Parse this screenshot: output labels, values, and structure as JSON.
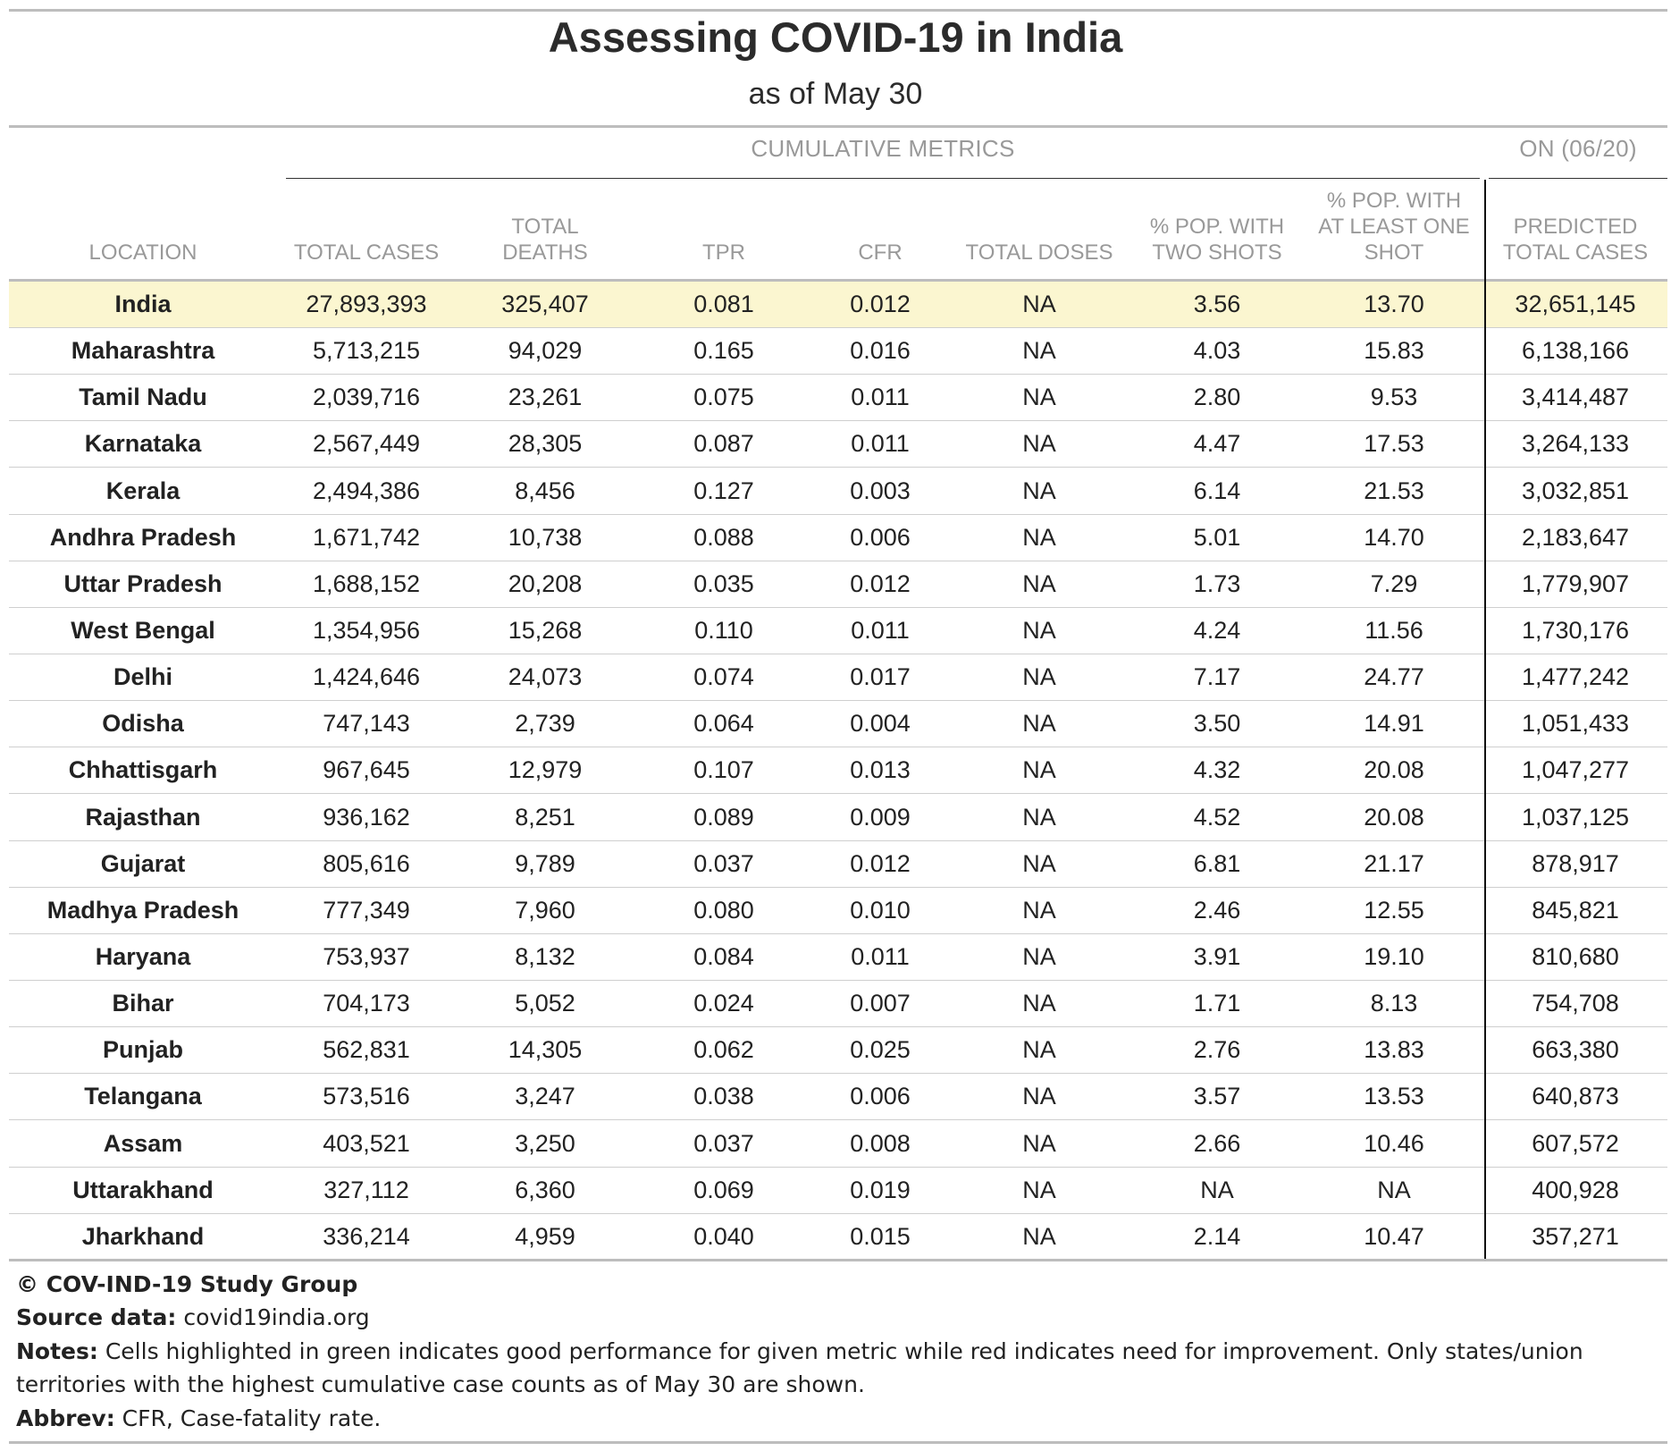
{
  "title": "Assessing COVID-19 in India",
  "subtitle": "as of May 30",
  "group_headers": {
    "cumulative": "CUMULATIVE METRICS",
    "on": "ON (06/20)"
  },
  "columns": [
    "LOCATION",
    "TOTAL CASES",
    "TOTAL DEATHS",
    "TPR",
    "CFR",
    "TOTAL DOSES",
    "% POP. WITH TWO SHOTS",
    "% POP. WITH AT LEAST ONE SHOT",
    "PREDICTED TOTAL CASES"
  ],
  "highlight_color": "#fbf6d0",
  "chart_data": {
    "type": "table",
    "title": "Assessing COVID-19 in India",
    "subtitle": "as of May 30",
    "columns": [
      "LOCATION",
      "TOTAL CASES",
      "TOTAL DEATHS",
      "TPR",
      "CFR",
      "TOTAL DOSES",
      "% POP. WITH TWO SHOTS",
      "% POP. WITH AT LEAST ONE SHOT",
      "PREDICTED TOTAL CASES"
    ],
    "rows": [
      [
        "India",
        "27,893,393",
        "325,407",
        "0.081",
        "0.012",
        "NA",
        "3.56",
        "13.70",
        "32,651,145"
      ],
      [
        "Maharashtra",
        "5,713,215",
        "94,029",
        "0.165",
        "0.016",
        "NA",
        "4.03",
        "15.83",
        "6,138,166"
      ],
      [
        "Tamil Nadu",
        "2,039,716",
        "23,261",
        "0.075",
        "0.011",
        "NA",
        "2.80",
        "9.53",
        "3,414,487"
      ],
      [
        "Karnataka",
        "2,567,449",
        "28,305",
        "0.087",
        "0.011",
        "NA",
        "4.47",
        "17.53",
        "3,264,133"
      ],
      [
        "Kerala",
        "2,494,386",
        "8,456",
        "0.127",
        "0.003",
        "NA",
        "6.14",
        "21.53",
        "3,032,851"
      ],
      [
        "Andhra Pradesh",
        "1,671,742",
        "10,738",
        "0.088",
        "0.006",
        "NA",
        "5.01",
        "14.70",
        "2,183,647"
      ],
      [
        "Uttar Pradesh",
        "1,688,152",
        "20,208",
        "0.035",
        "0.012",
        "NA",
        "1.73",
        "7.29",
        "1,779,907"
      ],
      [
        "West Bengal",
        "1,354,956",
        "15,268",
        "0.110",
        "0.011",
        "NA",
        "4.24",
        "11.56",
        "1,730,176"
      ],
      [
        "Delhi",
        "1,424,646",
        "24,073",
        "0.074",
        "0.017",
        "NA",
        "7.17",
        "24.77",
        "1,477,242"
      ],
      [
        "Odisha",
        "747,143",
        "2,739",
        "0.064",
        "0.004",
        "NA",
        "3.50",
        "14.91",
        "1,051,433"
      ],
      [
        "Chhattisgarh",
        "967,645",
        "12,979",
        "0.107",
        "0.013",
        "NA",
        "4.32",
        "20.08",
        "1,047,277"
      ],
      [
        "Rajasthan",
        "936,162",
        "8,251",
        "0.089",
        "0.009",
        "NA",
        "4.52",
        "20.08",
        "1,037,125"
      ],
      [
        "Gujarat",
        "805,616",
        "9,789",
        "0.037",
        "0.012",
        "NA",
        "6.81",
        "21.17",
        "878,917"
      ],
      [
        "Madhya Pradesh",
        "777,349",
        "7,960",
        "0.080",
        "0.010",
        "NA",
        "2.46",
        "12.55",
        "845,821"
      ],
      [
        "Haryana",
        "753,937",
        "8,132",
        "0.084",
        "0.011",
        "NA",
        "3.91",
        "19.10",
        "810,680"
      ],
      [
        "Bihar",
        "704,173",
        "5,052",
        "0.024",
        "0.007",
        "NA",
        "1.71",
        "8.13",
        "754,708"
      ],
      [
        "Punjab",
        "562,831",
        "14,305",
        "0.062",
        "0.025",
        "NA",
        "2.76",
        "13.83",
        "663,380"
      ],
      [
        "Telangana",
        "573,516",
        "3,247",
        "0.038",
        "0.006",
        "NA",
        "3.57",
        "13.53",
        "640,873"
      ],
      [
        "Assam",
        "403,521",
        "3,250",
        "0.037",
        "0.008",
        "NA",
        "2.66",
        "10.46",
        "607,572"
      ],
      [
        "Uttarakhand",
        "327,112",
        "6,360",
        "0.069",
        "0.019",
        "NA",
        "NA",
        "NA",
        "400,928"
      ],
      [
        "Jharkhand",
        "336,214",
        "4,959",
        "0.040",
        "0.015",
        "NA",
        "2.14",
        "10.47",
        "357,271"
      ]
    ]
  },
  "footer": {
    "copyright": "© COV-IND-19 Study Group",
    "source_label": "Source data:",
    "source_value": "covid19india.org",
    "notes_label": "Notes:",
    "notes_line1": "Cells highlighted in green indicates good performance for given metric while red indicates need for improvement. Only states/union",
    "notes_line2": "territories with the highest cumulative case counts as of May 30 are shown.",
    "abbrev_label": "Abbrev:",
    "abbrev_value": "CFR, Case-fatality rate."
  }
}
